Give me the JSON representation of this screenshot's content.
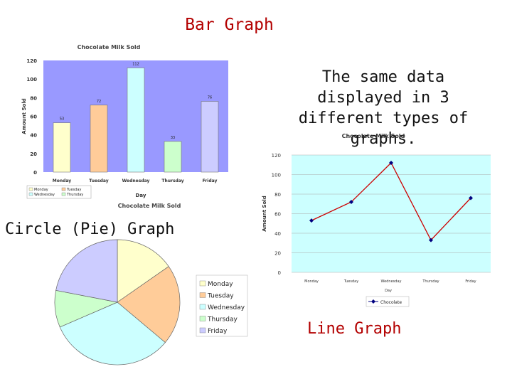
{
  "slide_title": "Bar Graph",
  "description": "The same data displayed in 3 different types of graphs.",
  "pie_heading": "Circle (Pie) Graph",
  "line_heading": "Line Graph",
  "colors": {
    "plot_bg": "#9999ff",
    "line_plot_bg": "#ccffff",
    "line_color": "#cc0000",
    "marker_color": "#000080",
    "Monday": "#ffffcc",
    "Tuesday": "#ffcc99",
    "Wednesday": "#ccffff",
    "Thursday": "#ccffcc",
    "Friday": "#ccccff"
  },
  "chart_data": [
    {
      "type": "bar",
      "title": "Chocolate Milk Sold",
      "xlabel": "Day",
      "ylabel": "Amount Sold",
      "categories": [
        "Monday",
        "Tuesday",
        "Wednesday",
        "Thursday",
        "Friday"
      ],
      "values": [
        53,
        72,
        112,
        33,
        76
      ],
      "data_labels": [
        "53",
        "72",
        "112",
        "33",
        "76"
      ],
      "ylim": [
        0,
        120
      ],
      "yticks": [
        "0",
        "20",
        "40",
        "60",
        "80",
        "100",
        "120"
      ],
      "legend": [
        "Monday",
        "Tuesday",
        "Wednesday",
        "Thursday"
      ],
      "legend_placement": "bottom-left",
      "grid": false
    },
    {
      "type": "pie",
      "title": "Chocolate Milk Sold",
      "categories": [
        "Monday",
        "Tuesday",
        "Wednesday",
        "Thursday",
        "Friday"
      ],
      "values": [
        53,
        72,
        112,
        33,
        76
      ],
      "legend": [
        "Monday",
        "Tuesday",
        "Wednesday",
        "Thursday",
        "Friday"
      ],
      "legend_placement": "right"
    },
    {
      "type": "line",
      "title": "Chocolate Milk Sold",
      "xlabel": "Day",
      "ylabel": "Amount Sold",
      "categories": [
        "Monday",
        "Tuesday",
        "Wednesday",
        "Thursday",
        "Friday"
      ],
      "series": [
        {
          "name": "Chocolate",
          "values": [
            53,
            72,
            112,
            33,
            76
          ]
        }
      ],
      "ylim": [
        0,
        120
      ],
      "yticks": [
        "0",
        "20",
        "40",
        "60",
        "80",
        "100",
        "120"
      ],
      "legend_placement": "bottom",
      "grid": true
    }
  ]
}
